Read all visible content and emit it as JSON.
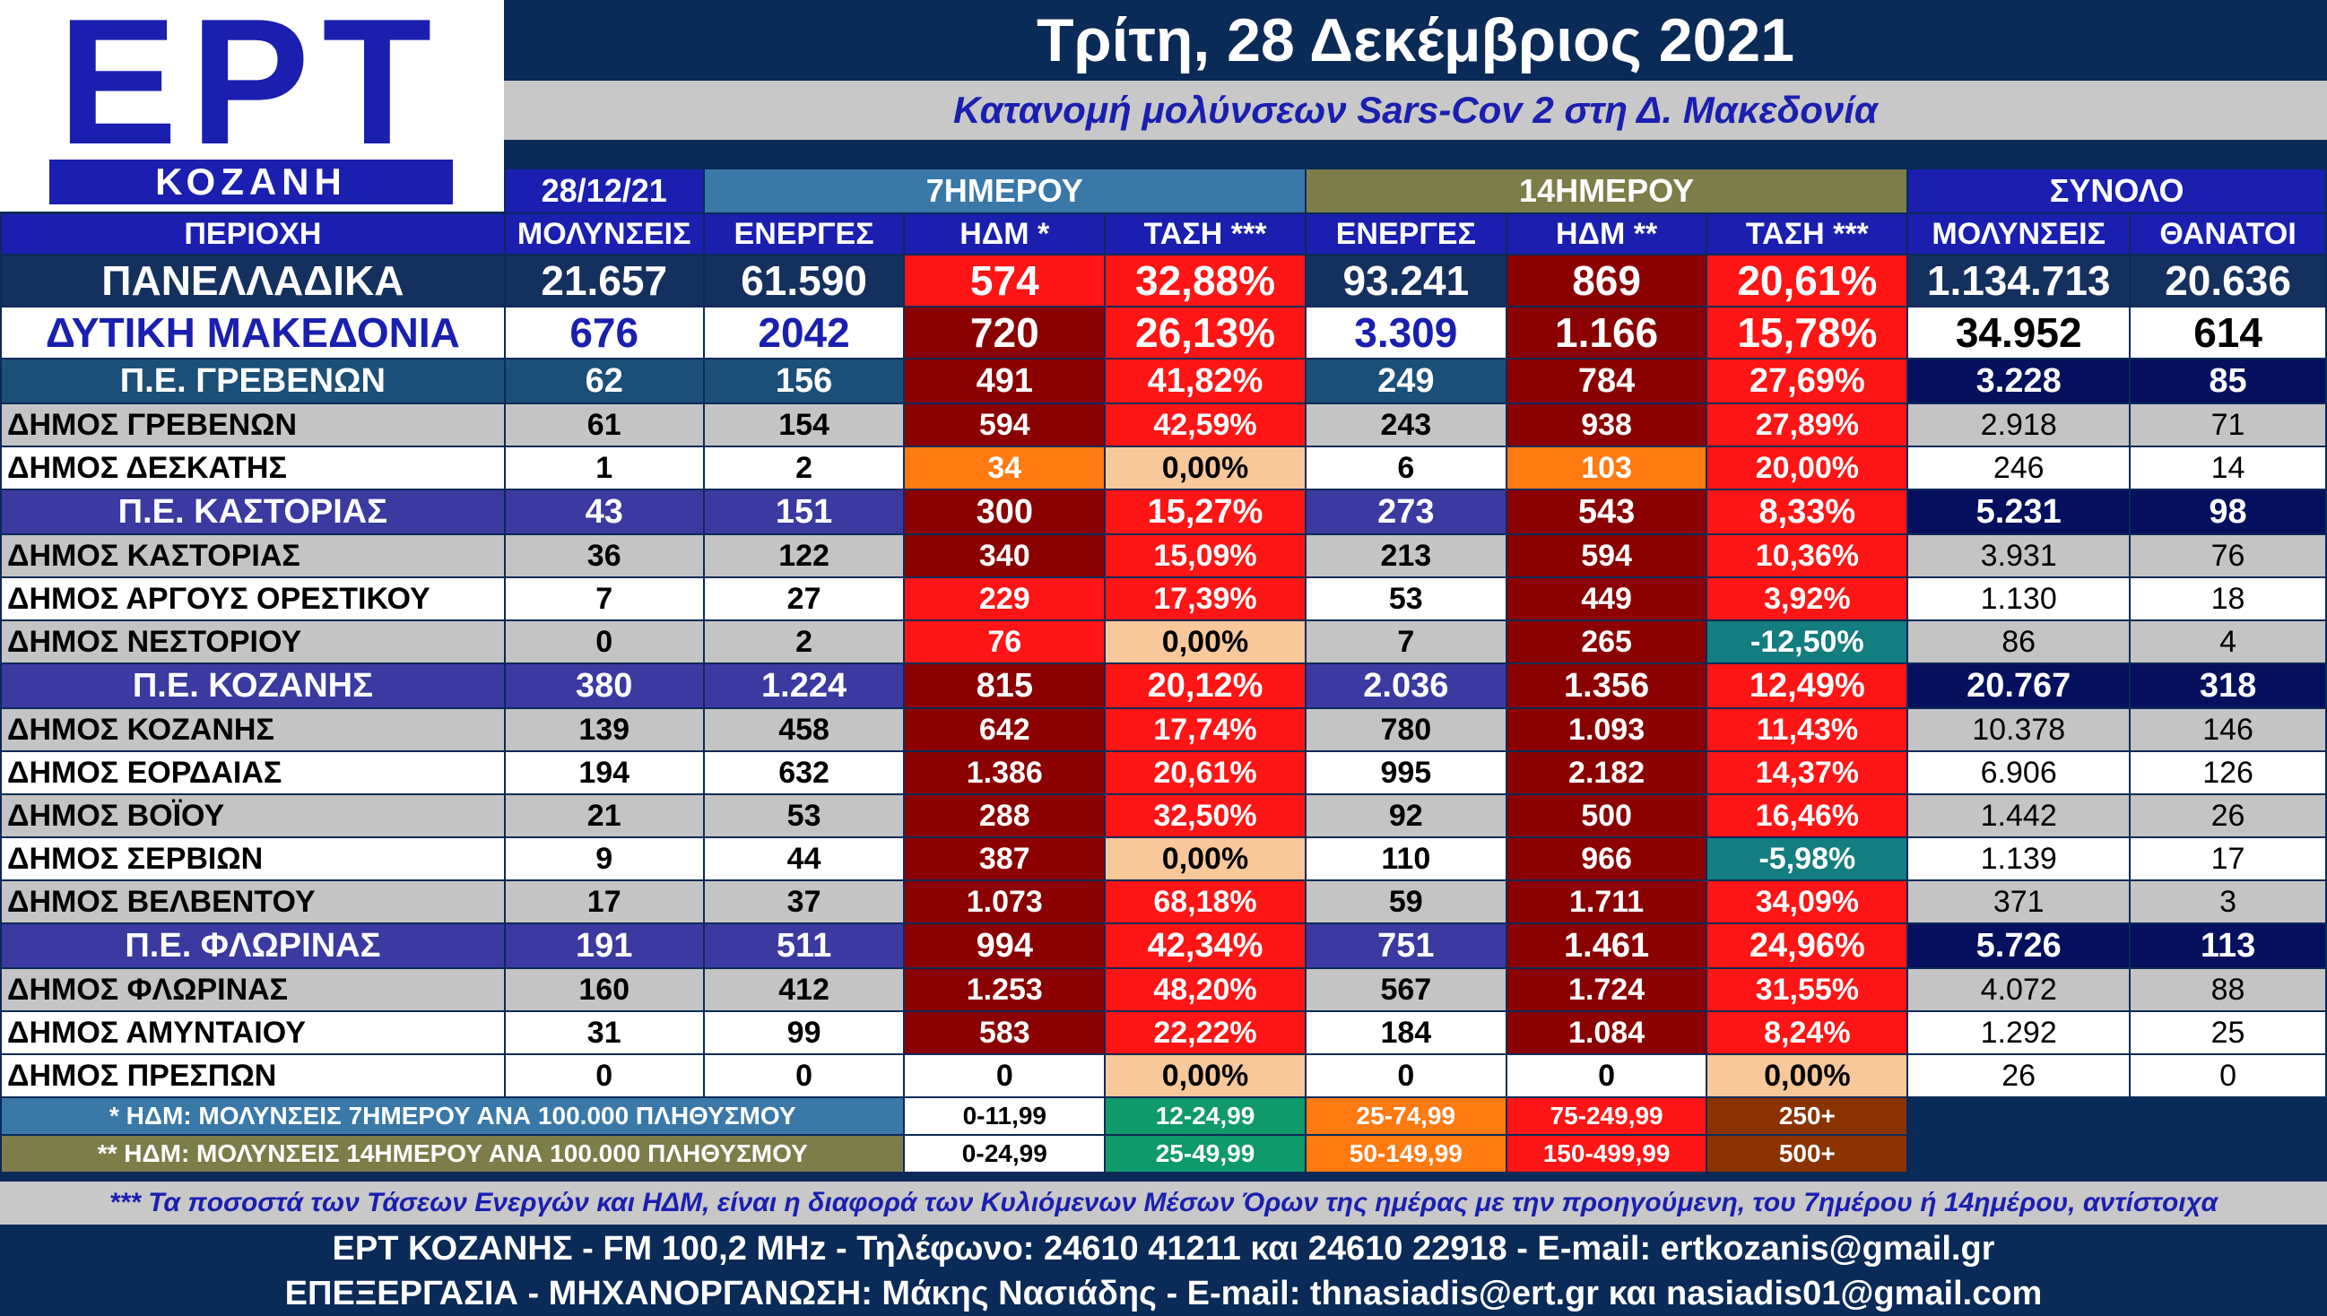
{
  "logo": {
    "main": "ΕΡΤ",
    "sub": "ΚΟΖΑΝΗ"
  },
  "header": {
    "date": "Τρίτη, 28 Δεκέμβριος 2021",
    "subtitle": "Κατανομή μολύνσεων Sars-Cov 2 στη Δ. Μακεδονία"
  },
  "table": {
    "date_label": "28/12/21",
    "group_7": "7ΗΜΕΡΟΥ",
    "group_14": "14ΗΜΕΡΟΥ",
    "group_total": "ΣΥΝΟΛΟ",
    "columns": [
      "ΠΕΡΙΟΧΗ",
      "ΜΟΛΥΝΣΕΙΣ",
      "ΕΝΕΡΓΕΣ",
      "ΗΔΜ *",
      "ΤΑΣΗ ***",
      "ΕΝΕΡΓΕΣ",
      "ΗΔΜ **",
      "ΤΑΣΗ ***",
      "ΜΟΛΥΝΣΕΙΣ",
      "ΘΑΝΑΤΟΙ"
    ],
    "rows": [
      {
        "name": "ΠΑΝΕΛΛΑΔΙΚΑ",
        "cells": [
          "21.657",
          "61.590",
          "574",
          "32,88%",
          "93.241",
          "869",
          "20,61%",
          "1.134.713",
          "20.636"
        ]
      },
      {
        "name": "ΔΥΤΙΚΗ ΜΑΚΕΔΟΝΙΑ",
        "cells": [
          "676",
          "2042",
          "720",
          "26,13%",
          "3.309",
          "1.166",
          "15,78%",
          "34.952",
          "614"
        ]
      },
      {
        "name": "Π.Ε. ΓΡΕΒΕΝΩΝ",
        "cells": [
          "62",
          "156",
          "491",
          "41,82%",
          "249",
          "784",
          "27,69%",
          "3.228",
          "85"
        ]
      },
      {
        "name": "ΔΗΜΟΣ ΓΡΕΒΕΝΩΝ",
        "cells": [
          "61",
          "154",
          "594",
          "42,59%",
          "243",
          "938",
          "27,89%",
          "2.918",
          "71"
        ]
      },
      {
        "name": "ΔΗΜΟΣ ΔΕΣΚΑΤΗΣ",
        "cells": [
          "1",
          "2",
          "34",
          "0,00%",
          "6",
          "103",
          "20,00%",
          "246",
          "14"
        ]
      },
      {
        "name": "Π.Ε. ΚΑΣΤΟΡΙΑΣ",
        "cells": [
          "43",
          "151",
          "300",
          "15,27%",
          "273",
          "543",
          "8,33%",
          "5.231",
          "98"
        ]
      },
      {
        "name": "ΔΗΜΟΣ ΚΑΣΤΟΡΙΑΣ",
        "cells": [
          "36",
          "122",
          "340",
          "15,09%",
          "213",
          "594",
          "10,36%",
          "3.931",
          "76"
        ]
      },
      {
        "name": "ΔΗΜΟΣ ΑΡΓΟΥΣ ΟΡΕΣΤΙΚΟΥ",
        "cells": [
          "7",
          "27",
          "229",
          "17,39%",
          "53",
          "449",
          "3,92%",
          "1.130",
          "18"
        ]
      },
      {
        "name": "ΔΗΜΟΣ ΝΕΣΤΟΡΙΟΥ",
        "cells": [
          "0",
          "2",
          "76",
          "0,00%",
          "7",
          "265",
          "-12,50%",
          "86",
          "4"
        ]
      },
      {
        "name": "Π.Ε. ΚΟΖΑΝΗΣ",
        "cells": [
          "380",
          "1.224",
          "815",
          "20,12%",
          "2.036",
          "1.356",
          "12,49%",
          "20.767",
          "318"
        ]
      },
      {
        "name": "ΔΗΜΟΣ ΚΟΖΑΝΗΣ",
        "cells": [
          "139",
          "458",
          "642",
          "17,74%",
          "780",
          "1.093",
          "11,43%",
          "10.378",
          "146"
        ]
      },
      {
        "name": "ΔΗΜΟΣ ΕΟΡΔΑΙΑΣ",
        "cells": [
          "194",
          "632",
          "1.386",
          "20,61%",
          "995",
          "2.182",
          "14,37%",
          "6.906",
          "126"
        ]
      },
      {
        "name": "ΔΗΜΟΣ ΒΟΪΟΥ",
        "cells": [
          "21",
          "53",
          "288",
          "32,50%",
          "92",
          "500",
          "16,46%",
          "1.442",
          "26"
        ]
      },
      {
        "name": "ΔΗΜΟΣ ΣΕΡΒΙΩΝ",
        "cells": [
          "9",
          "44",
          "387",
          "0,00%",
          "110",
          "966",
          "-5,98%",
          "1.139",
          "17"
        ]
      },
      {
        "name": "ΔΗΜΟΣ ΒΕΛΒΕΝΤΟΥ",
        "cells": [
          "17",
          "37",
          "1.073",
          "68,18%",
          "59",
          "1.711",
          "34,09%",
          "371",
          "3"
        ]
      },
      {
        "name": "Π.Ε. ΦΛΩΡΙΝΑΣ",
        "cells": [
          "191",
          "511",
          "994",
          "42,34%",
          "751",
          "1.461",
          "24,96%",
          "5.726",
          "113"
        ]
      },
      {
        "name": "ΔΗΜΟΣ ΦΛΩΡΙΝΑΣ",
        "cells": [
          "160",
          "412",
          "1.253",
          "48,20%",
          "567",
          "1.724",
          "31,55%",
          "4.072",
          "88"
        ]
      },
      {
        "name": "ΔΗΜΟΣ ΑΜΥΝΤΑΙΟΥ",
        "cells": [
          "31",
          "99",
          "583",
          "22,22%",
          "184",
          "1.084",
          "8,24%",
          "1.292",
          "25"
        ]
      },
      {
        "name": "ΔΗΜΟΣ ΠΡΕΣΠΩΝ",
        "cells": [
          "0",
          "0",
          "0",
          "0,00%",
          "0",
          "0",
          "0,00%",
          "26",
          "0"
        ]
      }
    ]
  },
  "legend": {
    "row7": {
      "label": "* ΗΔΜ: ΜΟΛΥΝΣΕΙΣ 7ΗΜΕΡΟΥ ΑΝΑ 100.000 ΠΛΗΘΥΣΜΟΥ",
      "ranges": [
        "0-11,99",
        "12-24,99",
        "25-74,99",
        "75-249,99",
        "250+"
      ]
    },
    "row14": {
      "label": "** ΗΔΜ: ΜΟΛΥΝΣΕΙΣ 14ΗΜΕΡΟΥ ΑΝΑ 100.000 ΠΛΗΘΥΣΜΟΥ",
      "ranges": [
        "0-24,99",
        "25-49,99",
        "50-149,99",
        "150-499,99",
        "500+"
      ]
    }
  },
  "footer": {
    "note": "*** Τα ποσοστά των Τάσεων Ενεργών και ΗΔΜ, είναι η διαφορά των Κυλιόμενων Μέσων Όρων της ημέρας με την προηγούμενη, του 7ημέρου ή 14ημέρου, αντίστοιχα",
    "line1": "ΕΡΤ ΚΟΖΑΝΗΣ - FM 100,2 MHz - Τηλέφωνο:  24610 41211 και 24610 22918 - E-mail: ertkozanis@gmail.gr",
    "line2": "ΕΠΕΞΕΡΓΑΣΙΑ  -  ΜΗΧΑΝΟΡΓΑΝΩΣΗ: Μάκης Νασιάδης  -   E-mail: thnasiadis@ert.gr και nasiadis01@gmail.com"
  },
  "colors": {
    "navy": "#0a2a57",
    "blue": "#1a1fb0",
    "dark_red": "#8b0000",
    "red": "#ff1515",
    "orange": "#ff7a10",
    "peach": "#f8c89a",
    "green": "#0e9a6a",
    "brown": "#8b3300"
  }
}
